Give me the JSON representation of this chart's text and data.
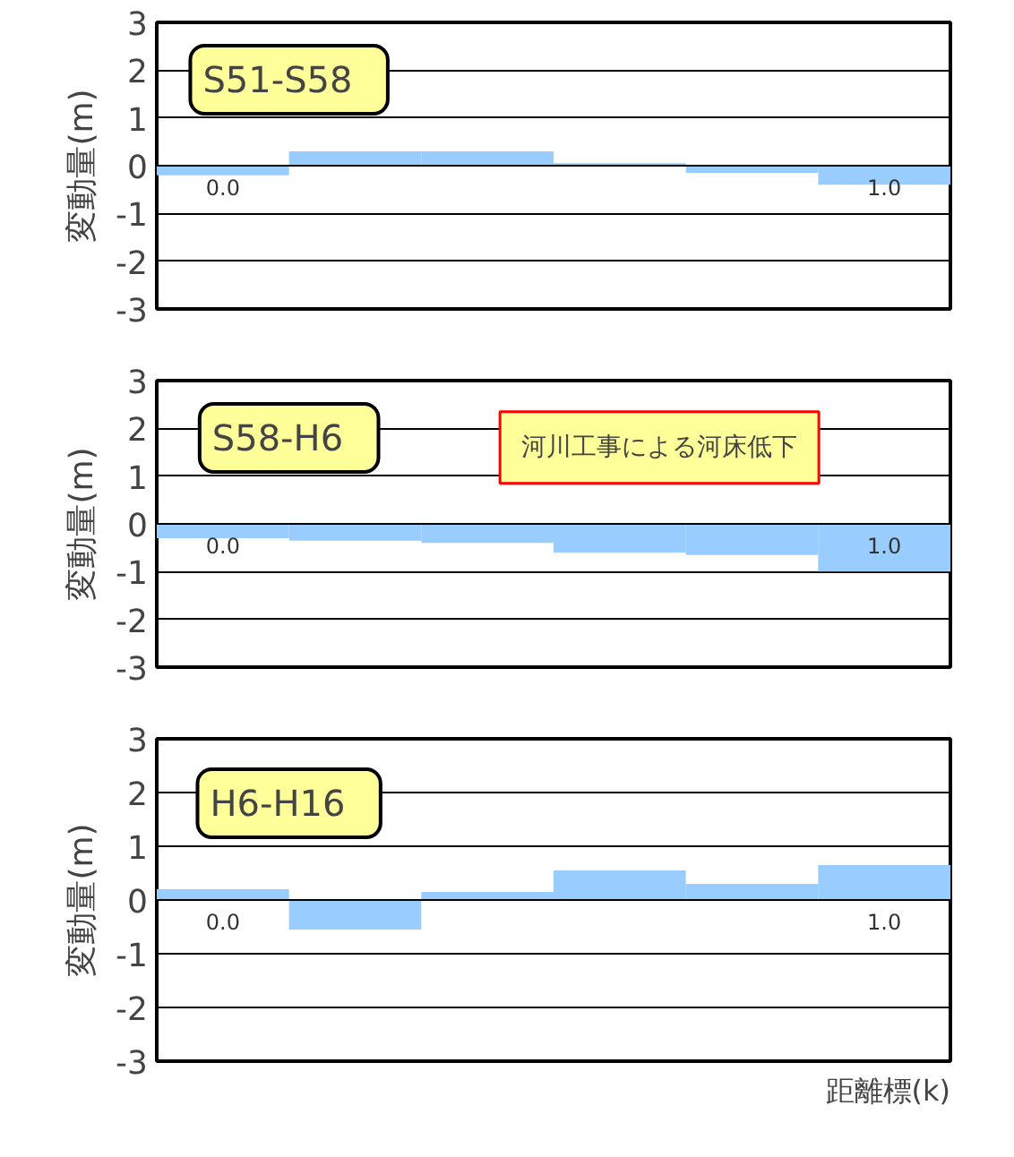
{
  "chart_data": [
    {
      "type": "bar",
      "title": "S51-S58",
      "ylabel": "変動量(m)",
      "categories": [
        "0.0",
        null,
        null,
        null,
        null,
        "1.0"
      ],
      "values": [
        -0.2,
        0.3,
        0.3,
        0.05,
        -0.15,
        -0.4
      ],
      "color": "#99ccff",
      "ylim": [
        -3,
        3
      ],
      "yticks": [
        -3,
        -2,
        -1,
        0,
        1,
        2,
        3
      ],
      "grid": "y"
    },
    {
      "type": "bar",
      "title": "S58-H6",
      "ylabel": "変動量(m)",
      "categories": [
        "0.0",
        null,
        null,
        null,
        null,
        "1.0"
      ],
      "values": [
        -0.3,
        -0.35,
        -0.4,
        -0.6,
        -0.65,
        -1.0
      ],
      "color": "#99ccff",
      "ylim": [
        -3,
        3
      ],
      "yticks": [
        -3,
        -2,
        -1,
        0,
        1,
        2,
        3
      ],
      "grid": "y",
      "annotations": [
        "河川工事による河床低下"
      ]
    },
    {
      "type": "bar",
      "title": "H6-H16",
      "ylabel": "変動量(m)",
      "xlabel": "距離標(k)",
      "categories": [
        "0.0",
        null,
        null,
        null,
        null,
        "1.0"
      ],
      "values": [
        0.2,
        -0.55,
        0.15,
        0.55,
        0.3,
        0.65
      ],
      "color": "#99ccff",
      "ylim": [
        -3,
        3
      ],
      "yticks": [
        -3,
        -2,
        -1,
        0,
        1,
        2,
        3
      ],
      "grid": "y"
    }
  ]
}
